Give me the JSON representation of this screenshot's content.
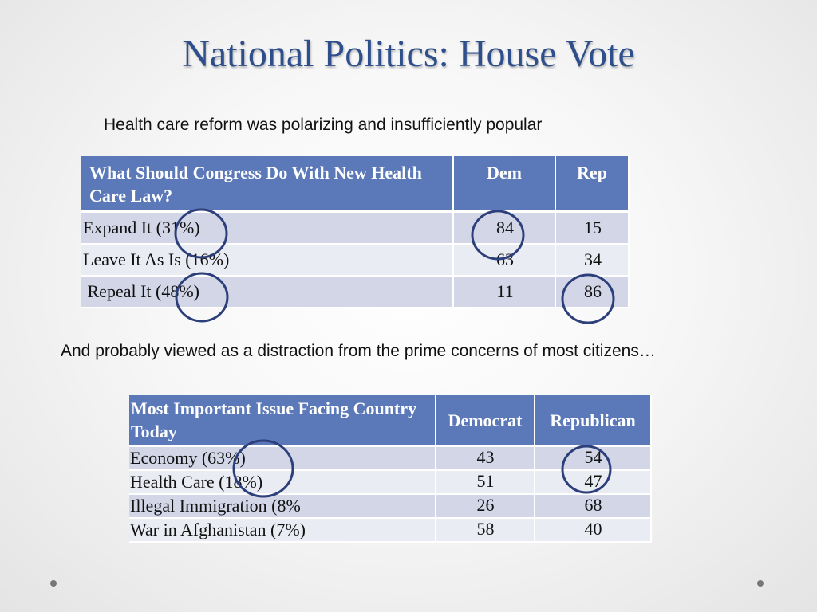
{
  "title": "National Politics: House Vote",
  "subtitle1": "Health care reform was polarizing and insufficiently popular",
  "subtitle2": "And probably viewed as a distraction from the prime concerns of most citizens…",
  "table1": {
    "headers": [
      "What Should Congress Do With New Health Care Law?",
      "Dem",
      "Rep"
    ],
    "rows": [
      {
        "label": "Expand It (31%)",
        "dem": "84",
        "rep": "15"
      },
      {
        "label": "Leave It As Is (16%)",
        "dem": "63",
        "rep": "34"
      },
      {
        "label": " Repeal It (48%)",
        "dem": "11",
        "rep": "86"
      }
    ]
  },
  "table2": {
    "headers": [
      "Most Important Issue Facing Country Today",
      "Democrat",
      "Republican"
    ],
    "rows": [
      {
        "label": "Economy (63%)",
        "dem": "43",
        "rep": "54"
      },
      {
        "label": "Health Care (18%)",
        "dem": "51",
        "rep": "47"
      },
      {
        "label": "Illegal Immigration (8%",
        "dem": "26",
        "rep": "68"
      },
      {
        "label": "War in Afghanistan (7%)",
        "dem": "58",
        "rep": "40"
      }
    ]
  },
  "colors": {
    "title": "#2e4f8c",
    "header_bg": "#5b79b8",
    "row_dark": "#d2d6e7",
    "row_light": "#eaecf3",
    "circle": "#2c3f7a",
    "nav_dot": "#777777"
  }
}
